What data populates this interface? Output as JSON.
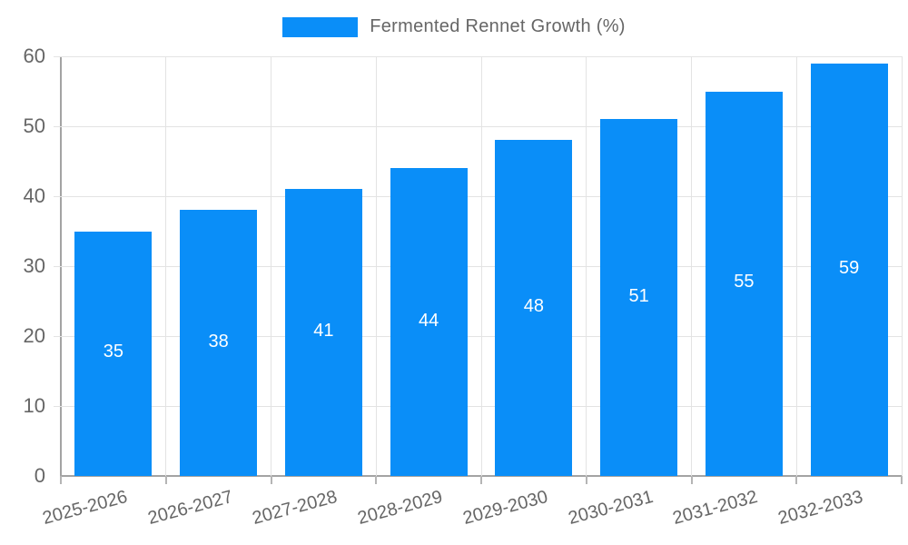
{
  "legend": {
    "label": "Fermented Rennet Growth (%)"
  },
  "chart_data": {
    "type": "bar",
    "title": "",
    "categories": [
      "2025-2026",
      "2026-2027",
      "2027-2028",
      "2028-2029",
      "2029-2030",
      "2030-2031",
      "2031-2032",
      "2032-2033"
    ],
    "series": [
      {
        "name": "Fermented Rennet Growth (%)",
        "values": [
          35,
          38,
          41,
          44,
          48,
          51,
          55,
          59
        ]
      }
    ],
    "value_labels": [
      "35",
      "38",
      "41",
      "44",
      "48",
      "51",
      "55",
      "59"
    ],
    "xlabel": "",
    "ylabel": "",
    "ylim": [
      0,
      60
    ],
    "yticks": [
      0,
      10,
      20,
      30,
      40,
      50,
      60
    ],
    "grid": true,
    "legend_position": "top",
    "colors": {
      "bar": "#0a8ef8",
      "grid_line": "#e3e3e3",
      "axis_line": "#a3a3a3",
      "tick_mark": "#b5b5b5",
      "tick_text": "#666666",
      "legend_text": "#666666",
      "value_text": "#ffffff",
      "background": "#ffffff"
    }
  }
}
